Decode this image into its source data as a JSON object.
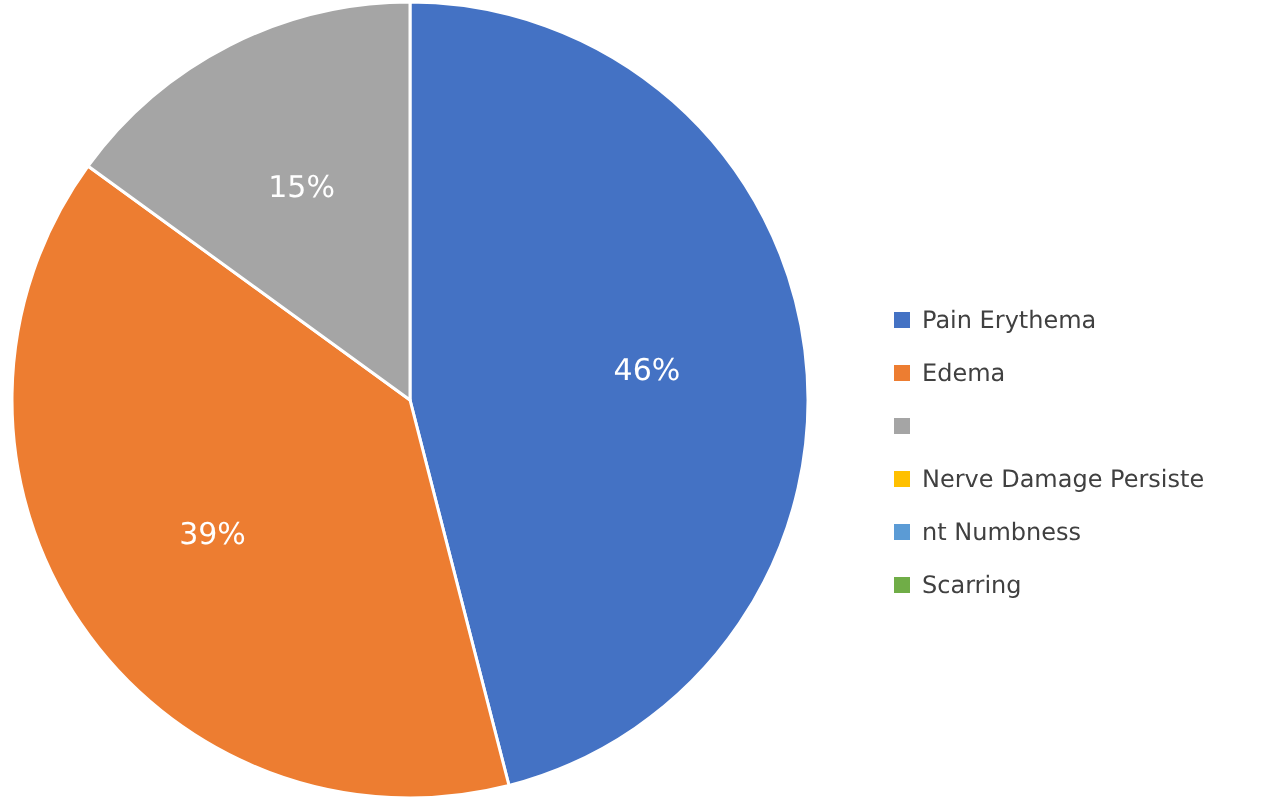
{
  "chart_data": {
    "type": "pie",
    "categories": [
      "Pain Erythema",
      "Edema",
      null,
      "Nerve Damage Persiste",
      "nt Numbness",
      "Scarring"
    ],
    "values": [
      46,
      39,
      15,
      0,
      0,
      0
    ],
    "colors": [
      "#4472c4",
      "#ed7d31",
      "#a5a5a5",
      "#ffc000",
      "#5b9bd5",
      "#70ad47"
    ],
    "value_labels": [
      "46%",
      "39%",
      "15%",
      null,
      null,
      null
    ],
    "legend": "right"
  }
}
